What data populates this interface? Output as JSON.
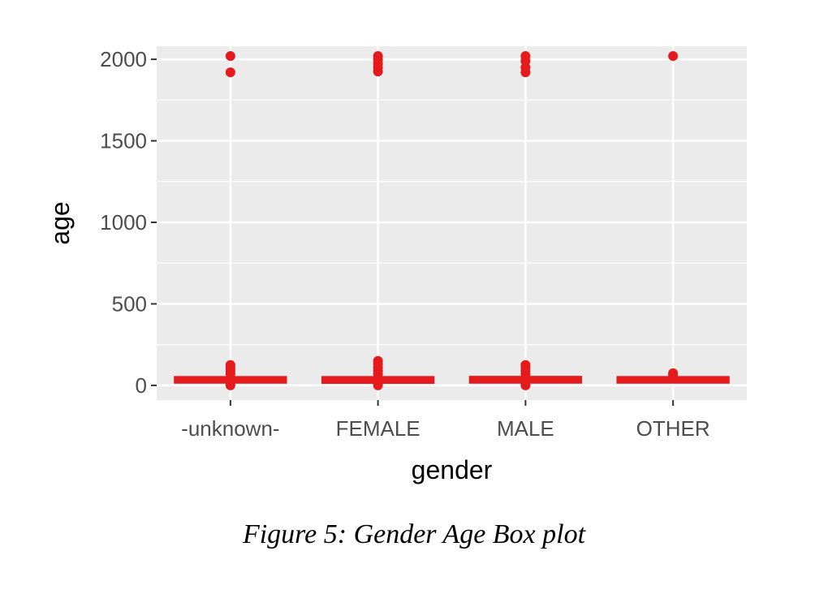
{
  "figure_caption": "Figure 5: Gender Age Box plot",
  "colors": {
    "panel_background": "#ebebeb",
    "grid": "#ffffff",
    "box": "#e41a1c"
  },
  "chart_data": {
    "type": "box",
    "xlabel": "gender",
    "ylabel": "age",
    "categories": [
      "-unknown-",
      "FEMALE",
      "MALE",
      "OTHER"
    ],
    "yticks": [
      0,
      500,
      1000,
      1500,
      2000
    ],
    "ytick_labels": [
      "0",
      "500",
      "1000",
      "1500",
      "2000"
    ],
    "ylim": [
      -90,
      2080
    ],
    "grid": true,
    "boxes": [
      {
        "category": "-unknown-",
        "q1": 28,
        "median": 33,
        "q3": 40,
        "whisker_low": 10,
        "whisker_high": 58,
        "outliers": [
          0,
          10,
          70,
          85,
          100,
          115,
          125,
          1920,
          2020
        ]
      },
      {
        "category": "FEMALE",
        "q1": 27,
        "median": 32,
        "q3": 40,
        "whisker_low": 10,
        "whisker_high": 58,
        "outliers": [
          0,
          10,
          70,
          90,
          110,
          130,
          150,
          1925,
          1950,
          1975,
          2000,
          2020
        ]
      },
      {
        "category": "MALE",
        "q1": 28,
        "median": 33,
        "q3": 41,
        "whisker_low": 10,
        "whisker_high": 60,
        "outliers": [
          0,
          10,
          70,
          90,
          110,
          125,
          1920,
          1950,
          1990,
          2020
        ]
      },
      {
        "category": "OTHER",
        "q1": 28,
        "median": 33,
        "q3": 40,
        "whisker_low": 15,
        "whisker_high": 55,
        "outliers": [
          65,
          75,
          2020
        ]
      }
    ]
  }
}
